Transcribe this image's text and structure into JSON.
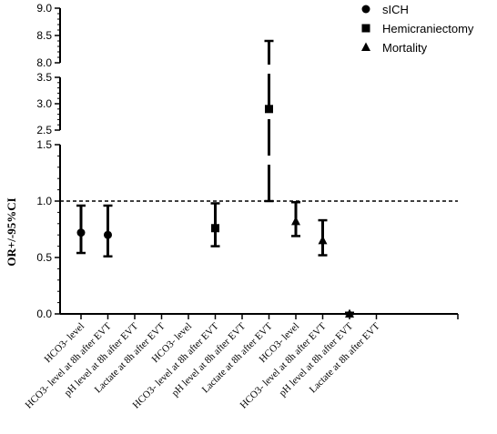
{
  "chart_data": {
    "type": "scatter",
    "ylabel": "OR+/-95%CI",
    "reference_line": 1.0,
    "categories": [
      "HCO3- level",
      "HCO3- level at 8h after EVT",
      "pH level at 8h after EVT",
      "Lactate at 8h after EVT",
      "HCO3- level",
      "HCO3- level at 8h after EVT",
      "pH level at 8h after EVT",
      "Lactate at 8h after EVT",
      "HCO3- level",
      "HCO3- level at 8h after EVT",
      "pH level at 8h after EVT",
      "Lactate at 8h after EVT"
    ],
    "y_segments": [
      {
        "range": [
          0,
          1.5
        ],
        "ticks": [
          0.0,
          0.5,
          1.0,
          1.5
        ],
        "tick_labels": [
          "0.0",
          "0.5",
          "1.0",
          "1.5"
        ]
      },
      {
        "range": [
          2.5,
          3.5
        ],
        "ticks": [
          2.5,
          3.0,
          3.5
        ],
        "tick_labels": [
          "2.5",
          "3.0",
          "3.5"
        ]
      },
      {
        "range": [
          8.0,
          9.0
        ],
        "ticks": [
          8.0,
          8.5,
          9.0
        ],
        "tick_labels": [
          "8.0",
          "8.5",
          "9.0"
        ]
      }
    ],
    "legend": {
      "position": "top-right"
    },
    "series": [
      {
        "name": "sICH",
        "marker": "circle",
        "points": [
          {
            "cat": 0,
            "y": 0.72,
            "lo": 0.54,
            "hi": 0.96
          },
          {
            "cat": 1,
            "y": 0.7,
            "lo": 0.51,
            "hi": 0.96
          }
        ]
      },
      {
        "name": "Hemicraniectomy",
        "marker": "square",
        "points": [
          {
            "cat": 5,
            "y": 0.76,
            "lo": 0.6,
            "hi": 0.98
          },
          {
            "cat": 7,
            "y": 2.9,
            "lo": 1.0,
            "hi": 8.4
          }
        ]
      },
      {
        "name": "Mortality",
        "marker": "triangle",
        "points": [
          {
            "cat": 8,
            "y": 0.82,
            "lo": 0.69,
            "hi": 0.99
          },
          {
            "cat": 9,
            "y": 0.65,
            "lo": 0.52,
            "hi": 0.83
          },
          {
            "cat": 10,
            "y": 0.0,
            "lo": 0.0,
            "hi": 0.01
          }
        ]
      }
    ]
  }
}
